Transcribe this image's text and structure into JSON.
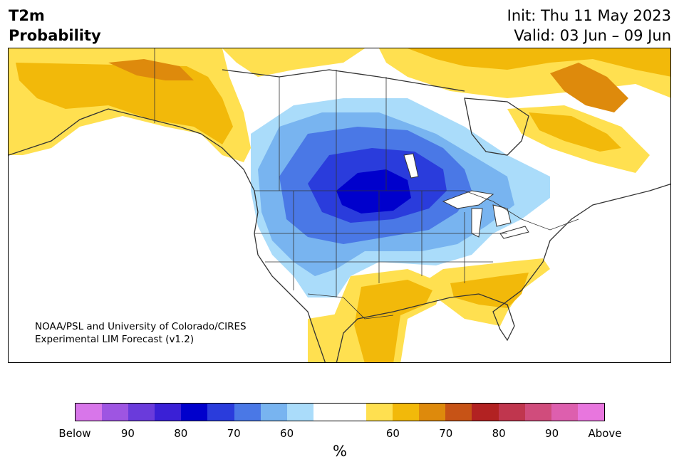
{
  "header": {
    "title_line1": "T2m",
    "title_line2": "Probability",
    "init": "Init: Thu 11 May 2023",
    "valid": "Valid: 03 Jun – 09 Jun"
  },
  "map": {
    "credit_line1": "NOAA/PSL and University of Colorado/CIRES",
    "credit_line2": "Experimental LIM Forecast (v1.2)",
    "colors": {
      "land_border": "#333333",
      "below_60": "#aadcfa",
      "below_70": "#78b4f0",
      "below_80": "#4a78e6",
      "below_90": "#2a3cdc",
      "below_90plus": "#0000cc",
      "above_60": "#ffe050",
      "above_70": "#f2b90a",
      "above_80": "#de8a0c"
    }
  },
  "colorbar": {
    "colors": [
      "#d876ea",
      "#9e55e2",
      "#6a3bdb",
      "#3a20d6",
      "#0000cc",
      "#2a3cdc",
      "#4a78e6",
      "#78b4f0",
      "#aadcfa",
      "#ffffff",
      "#ffffff",
      "#ffe050",
      "#f2b90a",
      "#de8a0c",
      "#c75316",
      "#b22222",
      "#c0364e",
      "#d04c7c",
      "#dd5fae",
      "#e876de"
    ],
    "ticks": [
      "Below",
      "90",
      "80",
      "70",
      "60",
      "60",
      "70",
      "80",
      "90",
      "Above"
    ],
    "unit": "%"
  }
}
